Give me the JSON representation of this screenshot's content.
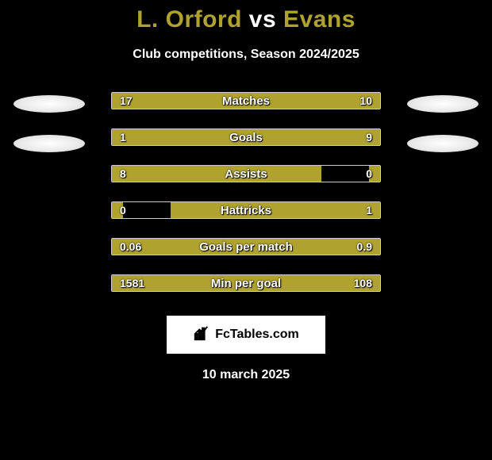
{
  "title": {
    "player1": "L. Orford",
    "vs": "vs",
    "player2": "Evans",
    "player1_color": "#b0a22f",
    "player2_color": "#b0a22f"
  },
  "subtitle": "Club competitions, Season 2024/2025",
  "colors": {
    "left_bar": "#b0a22f",
    "right_bar": "#b0a22f",
    "border": "#ffffff",
    "background": "#000000",
    "text": "#ffffff"
  },
  "bars": [
    {
      "label": "Matches",
      "left_value": "17",
      "right_value": "10",
      "left_width_pct": 63,
      "right_width_pct": 37
    },
    {
      "label": "Goals",
      "left_value": "1",
      "right_value": "9",
      "left_width_pct": 20,
      "right_width_pct": 80
    },
    {
      "label": "Assists",
      "left_value": "8",
      "right_value": "0",
      "left_width_pct": 78,
      "right_width_pct": 4
    },
    {
      "label": "Hattricks",
      "left_value": "0",
      "right_value": "1",
      "left_width_pct": 4,
      "right_width_pct": 78
    },
    {
      "label": "Goals per match",
      "left_value": "0.06",
      "right_value": "0.9",
      "left_width_pct": 25,
      "right_width_pct": 75
    },
    {
      "label": "Min per goal",
      "left_value": "1581",
      "right_value": "108",
      "left_width_pct": 80,
      "right_width_pct": 20
    }
  ],
  "footer_brand": "FcTables.com",
  "date": "10 march 2025"
}
